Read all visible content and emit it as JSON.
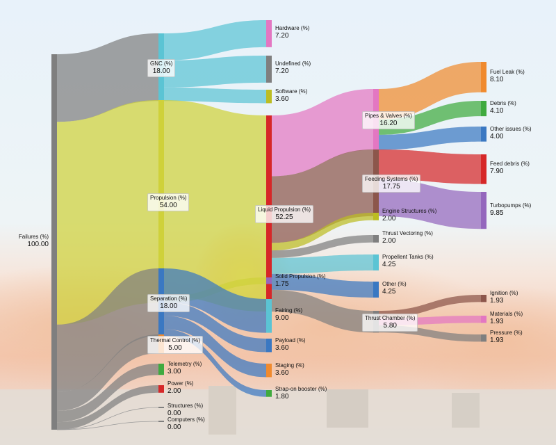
{
  "chart_data": {
    "type": "sankey",
    "nodes": [
      {
        "id": "failures",
        "name": "Failures (%)",
        "value": "100.00",
        "color": "#7f7f7f"
      },
      {
        "id": "gnc",
        "name": "GNC (%)",
        "value": "18.00",
        "color": "#5bc4d4"
      },
      {
        "id": "propulsion",
        "name": "Propulsion (%)",
        "value": "54.00",
        "color": "#cfd13a"
      },
      {
        "id": "separation",
        "name": "Separation (%)",
        "value": "18.00",
        "color": "#3a78c2"
      },
      {
        "id": "thermal",
        "name": "Thermal Control (%)",
        "value": "5.00",
        "color": "#f08a2e"
      },
      {
        "id": "telemetry",
        "name": "Telemetry (%)",
        "value": "3.00",
        "color": "#3faa3f"
      },
      {
        "id": "power",
        "name": "Power (%)",
        "value": "2.00",
        "color": "#d62728"
      },
      {
        "id": "structures",
        "name": "Structures (%)",
        "value": "0.00",
        "color": "#7f7f7f"
      },
      {
        "id": "computers",
        "name": "Computers (%)",
        "value": "0.00",
        "color": "#7f7f7f"
      },
      {
        "id": "hardware",
        "name": "Hardware (%)",
        "value": "7.20",
        "color": "#e377c2"
      },
      {
        "id": "undefined",
        "name": "Undefined (%)",
        "value": "7.20",
        "color": "#7f7f7f"
      },
      {
        "id": "software",
        "name": "Software (%)",
        "value": "3.60",
        "color": "#bcbd22"
      },
      {
        "id": "liquid",
        "name": "Liquid Propulsion (%)",
        "value": "52.25",
        "color": "#d62728"
      },
      {
        "id": "solid",
        "name": "Solid Propulsion (%)",
        "value": "1.75",
        "color": "#9467bd"
      },
      {
        "id": "fairing",
        "name": "Fairing (%)",
        "value": "9.00",
        "color": "#5bc4d4"
      },
      {
        "id": "payload",
        "name": "Payload (%)",
        "value": "3.60",
        "color": "#3a78c2"
      },
      {
        "id": "staging",
        "name": "Staging (%)",
        "value": "3.60",
        "color": "#f08a2e"
      },
      {
        "id": "strapon",
        "name": "Strap-on booster (%)",
        "value": "1.80",
        "color": "#3faa3f"
      },
      {
        "id": "pipes",
        "name": "Pipes & Valves (%)",
        "value": "16.20",
        "color": "#e377c2"
      },
      {
        "id": "feeding",
        "name": "Feeding Systems (%)",
        "value": "17.75",
        "color": "#8c564b"
      },
      {
        "id": "enginestruct",
        "name": "Engine Structures (%)",
        "value": "2.00",
        "color": "#bcbd22"
      },
      {
        "id": "thrustvec",
        "name": "Thrust Vectoring (%)",
        "value": "2.00",
        "color": "#7f7f7f"
      },
      {
        "id": "proptanks",
        "name": "Propellent Tanks (%)",
        "value": "4.25",
        "color": "#5bc4d4"
      },
      {
        "id": "other",
        "name": "Other (%)",
        "value": "4.25",
        "color": "#3a78c2"
      },
      {
        "id": "thrustchamber",
        "name": "Thrust Chamber (%)",
        "value": "5.80",
        "color": "#7f7f7f"
      },
      {
        "id": "fuelleak",
        "name": "Fuel Leak (%)",
        "value": "8.10",
        "color": "#f08a2e"
      },
      {
        "id": "debris",
        "name": "Debris (%)",
        "value": "4.10",
        "color": "#3faa3f"
      },
      {
        "id": "otherissues",
        "name": "Other issues (%)",
        "value": "4.00",
        "color": "#3a78c2"
      },
      {
        "id": "feeddebris",
        "name": "Feed debris (%)",
        "value": "7.90",
        "color": "#d62728"
      },
      {
        "id": "turbopumps",
        "name": "Turbopumps (%)",
        "value": "9.85",
        "color": "#9467bd"
      },
      {
        "id": "ignition",
        "name": "Ignition (%)",
        "value": "1.93",
        "color": "#8c564b"
      },
      {
        "id": "materials",
        "name": "Materials (%)",
        "value": "1.93",
        "color": "#e377c2"
      },
      {
        "id": "pressure",
        "name": "Pressure (%)",
        "value": "1.93",
        "color": "#7f7f7f"
      }
    ],
    "links": [
      {
        "source": "failures",
        "target": "gnc",
        "value": 18.0,
        "color": "#7f7f7f"
      },
      {
        "source": "failures",
        "target": "propulsion",
        "value": 54.0,
        "color": "#cfd13a"
      },
      {
        "source": "failures",
        "target": "separation",
        "value": 18.0,
        "color": "#7f7f7f"
      },
      {
        "source": "failures",
        "target": "thermal",
        "value": 5.0,
        "color": "#7f7f7f"
      },
      {
        "source": "failures",
        "target": "telemetry",
        "value": 3.0,
        "color": "#7f7f7f"
      },
      {
        "source": "failures",
        "target": "power",
        "value": 2.0,
        "color": "#7f7f7f"
      },
      {
        "source": "failures",
        "target": "structures",
        "value": 0.0,
        "color": "#7f7f7f"
      },
      {
        "source": "failures",
        "target": "computers",
        "value": 0.0,
        "color": "#7f7f7f"
      },
      {
        "source": "gnc",
        "target": "hardware",
        "value": 7.2,
        "color": "#5bc4d4"
      },
      {
        "source": "gnc",
        "target": "undefined",
        "value": 7.2,
        "color": "#5bc4d4"
      },
      {
        "source": "gnc",
        "target": "software",
        "value": 3.6,
        "color": "#5bc4d4"
      },
      {
        "source": "propulsion",
        "target": "liquid",
        "value": 52.25,
        "color": "#cfd13a"
      },
      {
        "source": "propulsion",
        "target": "solid",
        "value": 1.75,
        "color": "#cfd13a"
      },
      {
        "source": "separation",
        "target": "fairing",
        "value": 9.0,
        "color": "#3a78c2"
      },
      {
        "source": "separation",
        "target": "payload",
        "value": 3.6,
        "color": "#3a78c2"
      },
      {
        "source": "separation",
        "target": "staging",
        "value": 3.6,
        "color": "#3a78c2"
      },
      {
        "source": "separation",
        "target": "strapon",
        "value": 1.8,
        "color": "#3a78c2"
      },
      {
        "source": "liquid",
        "target": "pipes",
        "value": 16.2,
        "color": "#e377c2"
      },
      {
        "source": "liquid",
        "target": "feeding",
        "value": 17.75,
        "color": "#8c564b"
      },
      {
        "source": "liquid",
        "target": "enginestruct",
        "value": 2.0,
        "color": "#bcbd22"
      },
      {
        "source": "liquid",
        "target": "thrustvec",
        "value": 2.0,
        "color": "#7f7f7f"
      },
      {
        "source": "liquid",
        "target": "proptanks",
        "value": 4.25,
        "color": "#5bc4d4"
      },
      {
        "source": "liquid",
        "target": "other",
        "value": 4.25,
        "color": "#3a78c2"
      },
      {
        "source": "liquid",
        "target": "thrustchamber",
        "value": 5.8,
        "color": "#7f7f7f"
      },
      {
        "source": "pipes",
        "target": "fuelleak",
        "value": 8.1,
        "color": "#f08a2e"
      },
      {
        "source": "pipes",
        "target": "debris",
        "value": 4.1,
        "color": "#3faa3f"
      },
      {
        "source": "pipes",
        "target": "otherissues",
        "value": 4.0,
        "color": "#3a78c2"
      },
      {
        "source": "feeding",
        "target": "feeddebris",
        "value": 7.9,
        "color": "#d62728"
      },
      {
        "source": "feeding",
        "target": "turbopumps",
        "value": 9.85,
        "color": "#9467bd"
      },
      {
        "source": "thrustchamber",
        "target": "ignition",
        "value": 1.93,
        "color": "#8c564b"
      },
      {
        "source": "thrustchamber",
        "target": "materials",
        "value": 1.93,
        "color": "#e377c2"
      },
      {
        "source": "thrustchamber",
        "target": "pressure",
        "value": 1.93,
        "color": "#7f7f7f"
      }
    ]
  }
}
